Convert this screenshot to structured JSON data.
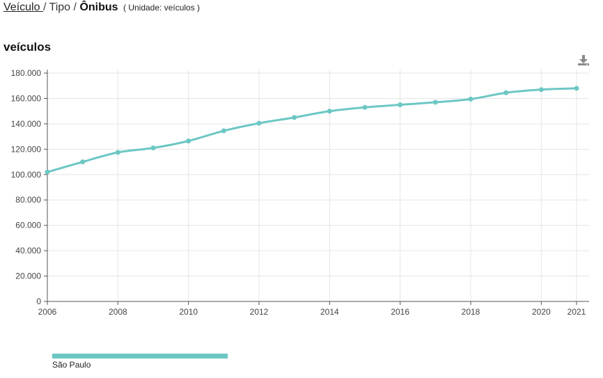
{
  "breadcrumb": {
    "link_label": "Veículo ",
    "separator": "/",
    "middle": "Tipo",
    "current": "Ônibus",
    "unit_text": "( Unidade: veículos )"
  },
  "icons": {
    "download": "download-icon"
  },
  "colors": {
    "series": "#6cc7c4",
    "grid": "#e5e5e5",
    "axis": "#555555"
  },
  "chart_data": {
    "type": "line",
    "title": "veículos",
    "x": [
      2006,
      2007,
      2008,
      2009,
      2010,
      2011,
      2012,
      2013,
      2014,
      2015,
      2016,
      2017,
      2018,
      2019,
      2020,
      2021
    ],
    "series": [
      {
        "name": "São Paulo",
        "values": [
          102000,
          110000,
          117500,
          121000,
          126500,
          134500,
          140500,
          145000,
          150000,
          153000,
          155000,
          157000,
          159500,
          164500,
          167000,
          168000
        ]
      }
    ],
    "xlim": [
      2006,
      2021
    ],
    "ylim": [
      0,
      180000
    ],
    "yticks": [
      0,
      20000,
      40000,
      60000,
      80000,
      100000,
      120000,
      140000,
      160000,
      180000
    ],
    "ytick_labels": [
      "0",
      "20.000",
      "40.000",
      "60.000",
      "80.000",
      "100.000",
      "120.000",
      "140.000",
      "160.000",
      "180.000"
    ],
    "xticks": [
      2006,
      2008,
      2010,
      2012,
      2014,
      2016,
      2018,
      2020,
      2021
    ],
    "xtick_labels": [
      "2006",
      "2008",
      "2010",
      "2012",
      "2014",
      "2016",
      "2018",
      "2020",
      "2021"
    ],
    "grid": true,
    "legend_position": "bottom-left"
  }
}
